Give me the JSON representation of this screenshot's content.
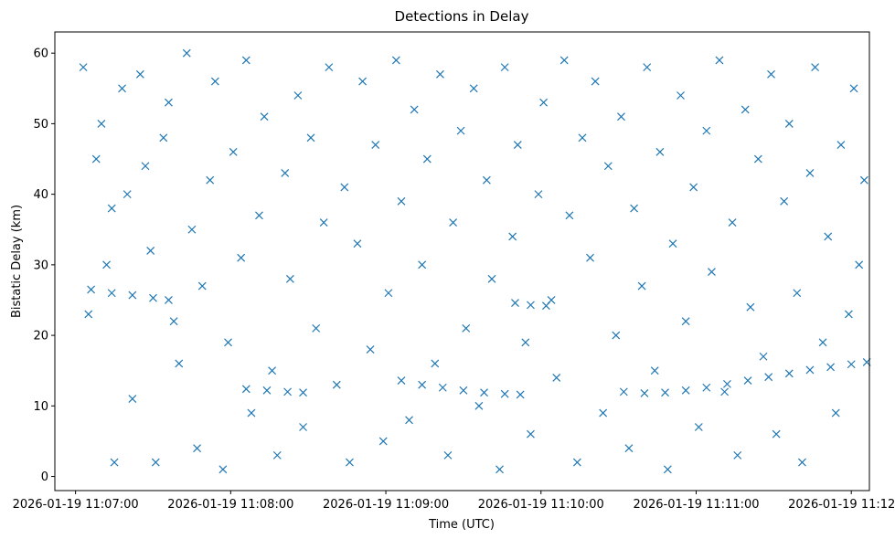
{
  "chart_data": {
    "type": "scatter",
    "title": "Detections in Delay",
    "xlabel": "Time (UTC)",
    "ylabel": "Bistatic Delay (km)",
    "x_unit": "UTC time",
    "xlim": [
      "2026-01-19 11:06:52",
      "2026-01-19 11:12:07"
    ],
    "ylim": [
      -2,
      63
    ],
    "x_ticks": [
      "2026-01-19 11:07:00",
      "2026-01-19 11:08:00",
      "2026-01-19 11:09:00",
      "2026-01-19 11:10:00",
      "2026-01-19 11:11:00",
      "2026-01-19 11:12:00"
    ],
    "y_ticks": [
      0,
      10,
      20,
      30,
      40,
      50,
      60
    ],
    "marker": "x",
    "color": "#1f77b4",
    "grid": false,
    "legend": "none",
    "series": [
      {
        "role": "clutter",
        "points": [
          [
            "11:07:03",
            58
          ],
          [
            "11:07:05",
            23
          ],
          [
            "11:07:08",
            45
          ],
          [
            "11:07:10",
            50
          ],
          [
            "11:07:12",
            30
          ],
          [
            "11:07:14",
            38
          ],
          [
            "11:07:15",
            2
          ],
          [
            "11:07:18",
            55
          ],
          [
            "11:07:20",
            40
          ],
          [
            "11:07:22",
            11
          ],
          [
            "11:07:25",
            57
          ],
          [
            "11:07:27",
            44
          ],
          [
            "11:07:29",
            32
          ],
          [
            "11:07:31",
            2
          ],
          [
            "11:07:34",
            48
          ],
          [
            "11:07:36",
            53
          ],
          [
            "11:07:38",
            22
          ],
          [
            "11:07:40",
            16
          ],
          [
            "11:07:43",
            60
          ],
          [
            "11:07:45",
            35
          ],
          [
            "11:07:47",
            4
          ],
          [
            "11:07:49",
            27
          ],
          [
            "11:07:52",
            42
          ],
          [
            "11:07:54",
            56
          ],
          [
            "11:07:57",
            1
          ],
          [
            "11:07:59",
            19
          ],
          [
            "11:08:01",
            46
          ],
          [
            "11:08:04",
            31
          ],
          [
            "11:08:06",
            59
          ],
          [
            "11:08:08",
            9
          ],
          [
            "11:08:11",
            37
          ],
          [
            "11:08:13",
            51
          ],
          [
            "11:08:16",
            15
          ],
          [
            "11:08:18",
            3
          ],
          [
            "11:08:21",
            43
          ],
          [
            "11:08:23",
            28
          ],
          [
            "11:08:26",
            54
          ],
          [
            "11:08:28",
            7
          ],
          [
            "11:08:31",
            48
          ],
          [
            "11:08:33",
            21
          ],
          [
            "11:08:36",
            36
          ],
          [
            "11:08:38",
            58
          ],
          [
            "11:08:41",
            13
          ],
          [
            "11:08:44",
            41
          ],
          [
            "11:08:46",
            2
          ],
          [
            "11:08:49",
            33
          ],
          [
            "11:08:51",
            56
          ],
          [
            "11:08:54",
            18
          ],
          [
            "11:08:56",
            47
          ],
          [
            "11:08:59",
            5
          ],
          [
            "11:09:01",
            26
          ],
          [
            "11:09:04",
            59
          ],
          [
            "11:09:06",
            39
          ],
          [
            "11:09:09",
            8
          ],
          [
            "11:09:11",
            52
          ],
          [
            "11:09:14",
            30
          ],
          [
            "11:09:16",
            45
          ],
          [
            "11:09:19",
            16
          ],
          [
            "11:09:21",
            57
          ],
          [
            "11:09:24",
            3
          ],
          [
            "11:09:26",
            36
          ],
          [
            "11:09:29",
            49
          ],
          [
            "11:09:31",
            21
          ],
          [
            "11:09:34",
            55
          ],
          [
            "11:09:36",
            10
          ],
          [
            "11:09:39",
            42
          ],
          [
            "11:09:41",
            28
          ],
          [
            "11:09:44",
            1
          ],
          [
            "11:09:46",
            58
          ],
          [
            "11:09:49",
            34
          ],
          [
            "11:09:51",
            47
          ],
          [
            "11:09:54",
            19
          ],
          [
            "11:09:56",
            6
          ],
          [
            "11:09:59",
            40
          ],
          [
            "11:10:01",
            53
          ],
          [
            "11:10:04",
            25
          ],
          [
            "11:10:06",
            14
          ],
          [
            "11:10:09",
            59
          ],
          [
            "11:10:11",
            37
          ],
          [
            "11:10:14",
            2
          ],
          [
            "11:10:16",
            48
          ],
          [
            "11:10:19",
            31
          ],
          [
            "11:10:21",
            56
          ],
          [
            "11:10:24",
            9
          ],
          [
            "11:10:26",
            44
          ],
          [
            "11:10:29",
            20
          ],
          [
            "11:10:31",
            51
          ],
          [
            "11:10:34",
            4
          ],
          [
            "11:10:36",
            38
          ],
          [
            "11:10:39",
            27
          ],
          [
            "11:10:41",
            58
          ],
          [
            "11:10:44",
            15
          ],
          [
            "11:10:46",
            46
          ],
          [
            "11:10:49",
            1
          ],
          [
            "11:10:51",
            33
          ],
          [
            "11:10:54",
            54
          ],
          [
            "11:10:56",
            22
          ],
          [
            "11:10:59",
            41
          ],
          [
            "11:11:01",
            7
          ],
          [
            "11:11:04",
            49
          ],
          [
            "11:11:06",
            29
          ],
          [
            "11:11:09",
            59
          ],
          [
            "11:11:11",
            12
          ],
          [
            "11:11:14",
            36
          ],
          [
            "11:11:16",
            3
          ],
          [
            "11:11:19",
            52
          ],
          [
            "11:11:21",
            24
          ],
          [
            "11:11:24",
            45
          ],
          [
            "11:11:26",
            17
          ],
          [
            "11:11:29",
            57
          ],
          [
            "11:11:31",
            6
          ],
          [
            "11:11:34",
            39
          ],
          [
            "11:11:36",
            50
          ],
          [
            "11:11:39",
            26
          ],
          [
            "11:11:41",
            2
          ],
          [
            "11:11:44",
            43
          ],
          [
            "11:11:46",
            58
          ],
          [
            "11:11:49",
            19
          ],
          [
            "11:11:51",
            34
          ],
          [
            "11:11:54",
            9
          ],
          [
            "11:11:56",
            47
          ],
          [
            "11:11:59",
            23
          ],
          [
            "11:12:01",
            55
          ],
          [
            "11:12:03",
            30
          ],
          [
            "11:12:05",
            42
          ]
        ]
      },
      {
        "role": "track-1",
        "points": [
          [
            "11:07:06",
            26.5
          ],
          [
            "11:07:14",
            26.0
          ],
          [
            "11:07:22",
            25.7
          ],
          [
            "11:07:30",
            25.3
          ],
          [
            "11:07:36",
            25.0
          ]
        ]
      },
      {
        "role": "track-2",
        "points": [
          [
            "11:08:06",
            12.4
          ],
          [
            "11:08:14",
            12.2
          ],
          [
            "11:08:22",
            12.0
          ],
          [
            "11:08:28",
            11.9
          ]
        ]
      },
      {
        "role": "track-3",
        "points": [
          [
            "11:09:06",
            13.6
          ],
          [
            "11:09:14",
            13.0
          ],
          [
            "11:09:22",
            12.6
          ],
          [
            "11:09:30",
            12.2
          ],
          [
            "11:09:38",
            11.9
          ],
          [
            "11:09:46",
            11.7
          ],
          [
            "11:09:52",
            11.6
          ]
        ]
      },
      {
        "role": "track-4",
        "points": [
          [
            "11:09:50",
            24.6
          ],
          [
            "11:09:56",
            24.3
          ],
          [
            "11:10:02",
            24.2
          ]
        ]
      },
      {
        "role": "track-5",
        "points": [
          [
            "11:10:32",
            12.0
          ],
          [
            "11:10:40",
            11.8
          ],
          [
            "11:10:48",
            11.9
          ],
          [
            "11:10:56",
            12.2
          ],
          [
            "11:11:04",
            12.6
          ],
          [
            "11:11:12",
            13.1
          ],
          [
            "11:11:20",
            13.6
          ],
          [
            "11:11:28",
            14.1
          ],
          [
            "11:11:36",
            14.6
          ],
          [
            "11:11:44",
            15.1
          ],
          [
            "11:11:52",
            15.5
          ],
          [
            "11:12:00",
            15.9
          ],
          [
            "11:12:06",
            16.2
          ]
        ]
      }
    ]
  }
}
